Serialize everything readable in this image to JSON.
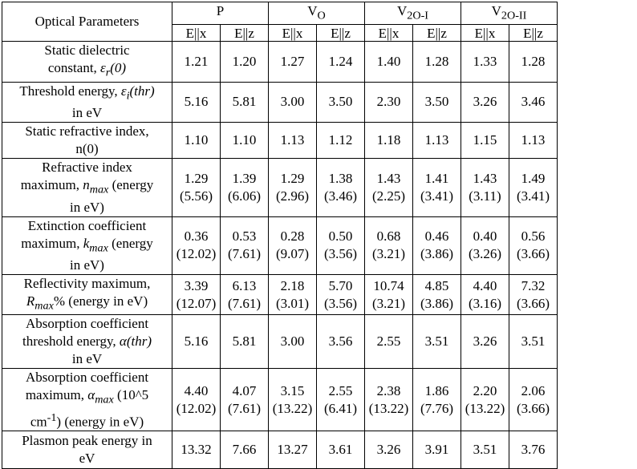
{
  "header": {
    "param_label": "Optical Parameters",
    "groups": [
      {
        "main": "P",
        "sub": ""
      },
      {
        "main": "V",
        "sub": "O"
      },
      {
        "main": "V",
        "sub": "2O-I"
      },
      {
        "main": "V",
        "sub": "2O-II"
      }
    ],
    "pol_x": "E||x",
    "pol_z": "E||z"
  },
  "rows": [
    {
      "lines": [
        "Static dielectric",
        "constant, ε_r(0)"
      ],
      "parts": [
        {
          "l1": "Static dielectric",
          "l2a": "constant, ",
          "sym": "ε",
          "symsub": "r",
          "tail": "(0)",
          "l3": ""
        }
      ],
      "values": [
        [
          "1.21",
          ""
        ],
        [
          "1.20",
          ""
        ],
        [
          "1.27",
          ""
        ],
        [
          "1.24",
          ""
        ],
        [
          "1.40",
          ""
        ],
        [
          "1.28",
          ""
        ],
        [
          "1.33",
          ""
        ],
        [
          "1.28",
          ""
        ]
      ]
    },
    {
      "parts": [
        {
          "l1a": "Threshold energy, ",
          "sym": "ε",
          "symsub": "i",
          "tail": "(thr)",
          "l2": "in eV"
        }
      ],
      "values": [
        [
          "5.16",
          ""
        ],
        [
          "5.81",
          ""
        ],
        [
          "3.00",
          ""
        ],
        [
          "3.50",
          ""
        ],
        [
          "2.30",
          ""
        ],
        [
          "3.50",
          ""
        ],
        [
          "3.26",
          ""
        ],
        [
          "3.46",
          ""
        ]
      ]
    },
    {
      "parts": [
        {
          "l1": "Static refractive index,",
          "l2": "n(0)"
        }
      ],
      "values": [
        [
          "1.10",
          ""
        ],
        [
          "1.10",
          ""
        ],
        [
          "1.13",
          ""
        ],
        [
          "1.12",
          ""
        ],
        [
          "1.18",
          ""
        ],
        [
          "1.13",
          ""
        ],
        [
          "1.15",
          ""
        ],
        [
          "1.13",
          ""
        ]
      ]
    },
    {
      "parts": [
        {
          "l1": "Refractive index",
          "l2a": "maximum, ",
          "sym": "n",
          "symsub": "max",
          "tail": " (energy",
          "l3": "in eV)"
        }
      ],
      "values": [
        [
          "1.29",
          "(5.56)"
        ],
        [
          "1.39",
          "(6.06)"
        ],
        [
          "1.29",
          "(2.96)"
        ],
        [
          "1.38",
          "(3.46)"
        ],
        [
          "1.43",
          "(2.25)"
        ],
        [
          "1.41",
          "(3.41)"
        ],
        [
          "1.43",
          "(3.11)"
        ],
        [
          "1.49",
          "(3.41)"
        ]
      ]
    },
    {
      "parts": [
        {
          "l1": "Extinction coefficient",
          "l2a": "maximum, ",
          "sym": "k",
          "symsub": "max",
          "tail": " (energy",
          "l3": "in eV)"
        }
      ],
      "values": [
        [
          "0.36",
          "(12.02)"
        ],
        [
          "0.53",
          "(7.61)"
        ],
        [
          "0.28",
          "(9.07)"
        ],
        [
          "0.50",
          "(3.56)"
        ],
        [
          "0.68",
          "(3.21)"
        ],
        [
          "0.46",
          "(3.86)"
        ],
        [
          "0.40",
          "(3.26)"
        ],
        [
          "0.56",
          "(3.66)"
        ]
      ]
    },
    {
      "parts": [
        {
          "l1": "Reflectivity maximum,",
          "sym": "R",
          "symsub": "max",
          "tail": "% (energy in eV)"
        }
      ],
      "values": [
        [
          "3.39",
          "(12.07)"
        ],
        [
          "6.13",
          "(7.61)"
        ],
        [
          "2.18",
          "(3.01)"
        ],
        [
          "5.70",
          "(3.56)"
        ],
        [
          "10.74",
          "(3.21)"
        ],
        [
          "4.85",
          "(3.86)"
        ],
        [
          "4.40",
          "(3.16)"
        ],
        [
          "7.32",
          "(3.66)"
        ]
      ]
    },
    {
      "parts": [
        {
          "l1": "Absorption coefficient",
          "l2a": "threshold energy, ",
          "sym": "α",
          "tail": "(thr)",
          "l3": "in eV"
        }
      ],
      "values": [
        [
          "5.16",
          ""
        ],
        [
          "5.81",
          ""
        ],
        [
          "3.00",
          ""
        ],
        [
          "3.56",
          ""
        ],
        [
          "2.55",
          ""
        ],
        [
          "3.51",
          ""
        ],
        [
          "3.26",
          ""
        ],
        [
          "3.51",
          ""
        ]
      ]
    },
    {
      "parts": [
        {
          "l1": "Absorption coefficient",
          "l2a": "maximum, ",
          "sym": "α",
          "symsub": "max",
          "tail": " (10^5",
          "l3a": "cm",
          "sup": "-1",
          "l3b": ") (energy in eV)"
        }
      ],
      "values": [
        [
          "4.40",
          "(12.02)"
        ],
        [
          "4.07",
          "(7.61)"
        ],
        [
          "3.15",
          "(13.22)"
        ],
        [
          "2.55",
          "(6.41)"
        ],
        [
          "2.38",
          "(13.22)"
        ],
        [
          "1.86",
          "(7.76)"
        ],
        [
          "2.20",
          "(13.22)"
        ],
        [
          "2.06",
          "(3.66)"
        ]
      ]
    },
    {
      "parts": [
        {
          "l1": "Plasmon peak energy in",
          "l2": "eV"
        }
      ],
      "values": [
        [
          "13.32",
          ""
        ],
        [
          "7.66",
          ""
        ],
        [
          "13.27",
          ""
        ],
        [
          "3.61",
          ""
        ],
        [
          "3.26",
          ""
        ],
        [
          "3.91",
          ""
        ],
        [
          "3.51",
          ""
        ],
        [
          "3.76",
          ""
        ]
      ]
    }
  ]
}
